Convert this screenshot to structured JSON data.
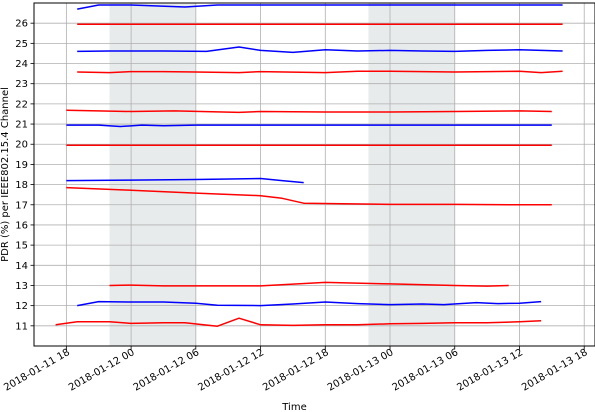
{
  "chart_data": {
    "type": "line",
    "xlabel": "Time",
    "ylabel": "PDR (%) per IEEE802.15.4 Channel",
    "x_unit": "datetime",
    "xlim": [
      "2018-01-11 15:00",
      "2018-01-13 19:00"
    ],
    "ylim": [
      10,
      27
    ],
    "grid": true,
    "x_ticks": [
      "2018-01-11 18",
      "2018-01-12 00",
      "2018-01-12 06",
      "2018-01-12 12",
      "2018-01-12 18",
      "2018-01-13 00",
      "2018-01-13 06",
      "2018-01-13 12",
      "2018-01-13 18"
    ],
    "x_tick_labels": [
      "2018-01-11 18",
      "2018-01-12 00",
      "2018-01-12 06",
      "2018-01-12 12",
      "2018-01-12 18",
      "2018-01-13 00",
      "2018-01-13 06",
      "2018-01-13 12",
      "2018-01-13 18"
    ],
    "y_ticks": [
      11,
      12,
      13,
      14,
      15,
      16,
      17,
      18,
      19,
      20,
      21,
      22,
      23,
      24,
      25,
      26
    ],
    "shaded_spans": [
      {
        "start": "2018-01-11 22:00",
        "end": "2018-01-12 06:00",
        "color": "#e8ebec"
      },
      {
        "start": "2018-01-12 22:00",
        "end": "2018-01-13 06:00",
        "color": "#e8ebec"
      }
    ],
    "series": [
      {
        "color": "#0000ff",
        "points": [
          [
            "2018-01-11 19:00",
            26.7
          ],
          [
            "2018-01-11 21:00",
            26.9
          ],
          [
            "2018-01-12 00:00",
            26.9
          ],
          [
            "2018-01-12 05:00",
            26.8
          ],
          [
            "2018-01-12 08:00",
            26.9
          ],
          [
            "2018-01-12 12:00",
            26.9
          ],
          [
            "2018-01-12 18:00",
            26.9
          ],
          [
            "2018-01-13 00:00",
            26.9
          ],
          [
            "2018-01-13 06:00",
            26.9
          ],
          [
            "2018-01-13 12:00",
            26.9
          ],
          [
            "2018-01-13 16:00",
            26.9
          ]
        ]
      },
      {
        "color": "#ff0000",
        "points": [
          [
            "2018-01-11 19:00",
            25.95
          ],
          [
            "2018-01-12 00:00",
            25.95
          ],
          [
            "2018-01-12 06:00",
            25.95
          ],
          [
            "2018-01-12 12:00",
            25.95
          ],
          [
            "2018-01-12 18:00",
            25.95
          ],
          [
            "2018-01-13 00:00",
            25.95
          ],
          [
            "2018-01-13 06:00",
            25.95
          ],
          [
            "2018-01-13 12:00",
            25.95
          ],
          [
            "2018-01-13 16:00",
            25.95
          ]
        ]
      },
      {
        "color": "#0000ff",
        "points": [
          [
            "2018-01-11 19:00",
            24.6
          ],
          [
            "2018-01-11 22:00",
            24.62
          ],
          [
            "2018-01-12 00:00",
            24.62
          ],
          [
            "2018-01-12 03:00",
            24.62
          ],
          [
            "2018-01-12 07:00",
            24.6
          ],
          [
            "2018-01-12 10:00",
            24.82
          ],
          [
            "2018-01-12 12:00",
            24.65
          ],
          [
            "2018-01-12 15:00",
            24.55
          ],
          [
            "2018-01-12 18:00",
            24.68
          ],
          [
            "2018-01-12 21:00",
            24.62
          ],
          [
            "2018-01-13 00:00",
            24.65
          ],
          [
            "2018-01-13 03:00",
            24.62
          ],
          [
            "2018-01-13 06:00",
            24.6
          ],
          [
            "2018-01-13 09:00",
            24.65
          ],
          [
            "2018-01-13 12:00",
            24.68
          ],
          [
            "2018-01-13 16:00",
            24.62
          ]
        ]
      },
      {
        "color": "#ff0000",
        "points": [
          [
            "2018-01-11 19:00",
            23.58
          ],
          [
            "2018-01-11 22:00",
            23.55
          ],
          [
            "2018-01-12 00:00",
            23.6
          ],
          [
            "2018-01-12 03:00",
            23.6
          ],
          [
            "2018-01-12 06:00",
            23.58
          ],
          [
            "2018-01-12 10:00",
            23.55
          ],
          [
            "2018-01-12 12:00",
            23.6
          ],
          [
            "2018-01-12 18:00",
            23.55
          ],
          [
            "2018-01-12 21:00",
            23.62
          ],
          [
            "2018-01-13 00:00",
            23.62
          ],
          [
            "2018-01-13 06:00",
            23.58
          ],
          [
            "2018-01-13 12:00",
            23.62
          ],
          [
            "2018-01-13 14:00",
            23.55
          ],
          [
            "2018-01-13 16:00",
            23.62
          ]
        ]
      },
      {
        "color": "#ff0000",
        "points": [
          [
            "2018-01-11 18:00",
            21.68
          ],
          [
            "2018-01-12 00:00",
            21.62
          ],
          [
            "2018-01-12 04:00",
            21.65
          ],
          [
            "2018-01-12 10:00",
            21.58
          ],
          [
            "2018-01-12 12:00",
            21.62
          ],
          [
            "2018-01-12 18:00",
            21.6
          ],
          [
            "2018-01-13 00:00",
            21.6
          ],
          [
            "2018-01-13 06:00",
            21.62
          ],
          [
            "2018-01-13 12:00",
            21.65
          ],
          [
            "2018-01-13 15:00",
            21.62
          ]
        ]
      },
      {
        "color": "#0000ff",
        "points": [
          [
            "2018-01-11 18:00",
            20.95
          ],
          [
            "2018-01-11 21:00",
            20.95
          ],
          [
            "2018-01-11 23:00",
            20.88
          ],
          [
            "2018-01-12 01:00",
            20.95
          ],
          [
            "2018-01-12 03:00",
            20.92
          ],
          [
            "2018-01-12 06:00",
            20.95
          ],
          [
            "2018-01-12 12:00",
            20.95
          ],
          [
            "2018-01-12 18:00",
            20.95
          ],
          [
            "2018-01-13 00:00",
            20.95
          ],
          [
            "2018-01-13 06:00",
            20.95
          ],
          [
            "2018-01-13 12:00",
            20.95
          ],
          [
            "2018-01-13 15:00",
            20.95
          ]
        ]
      },
      {
        "color": "#ff0000",
        "points": [
          [
            "2018-01-11 18:00",
            19.95
          ],
          [
            "2018-01-12 06:00",
            19.95
          ],
          [
            "2018-01-12 12:00",
            19.95
          ],
          [
            "2018-01-12 18:00",
            19.95
          ],
          [
            "2018-01-13 00:00",
            19.95
          ],
          [
            "2018-01-13 06:00",
            19.95
          ],
          [
            "2018-01-13 15:00",
            19.95
          ]
        ]
      },
      {
        "color": "#0000ff",
        "points": [
          [
            "2018-01-11 18:00",
            18.2
          ],
          [
            "2018-01-12 00:00",
            18.22
          ],
          [
            "2018-01-12 06:00",
            18.25
          ],
          [
            "2018-01-12 12:00",
            18.3
          ],
          [
            "2018-01-12 14:00",
            18.2
          ],
          [
            "2018-01-12 16:00",
            18.1
          ]
        ]
      },
      {
        "color": "#ff0000",
        "points": [
          [
            "2018-01-11 18:00",
            17.85
          ],
          [
            "2018-01-12 00:00",
            17.72
          ],
          [
            "2018-01-12 06:00",
            17.58
          ],
          [
            "2018-01-12 12:00",
            17.45
          ],
          [
            "2018-01-12 14:00",
            17.32
          ],
          [
            "2018-01-12 16:00",
            17.08
          ],
          [
            "2018-01-13 00:00",
            17.02
          ],
          [
            "2018-01-13 06:00",
            17.02
          ],
          [
            "2018-01-13 12:00",
            17.0
          ],
          [
            "2018-01-13 15:00",
            17.0
          ]
        ]
      },
      {
        "color": "#ff0000",
        "points": [
          [
            "2018-01-11 22:00",
            13.0
          ],
          [
            "2018-01-12 00:00",
            13.02
          ],
          [
            "2018-01-12 03:00",
            12.98
          ],
          [
            "2018-01-12 06:00",
            12.98
          ],
          [
            "2018-01-12 12:00",
            12.98
          ],
          [
            "2018-01-12 18:00",
            13.15
          ],
          [
            "2018-01-13 00:00",
            13.08
          ],
          [
            "2018-01-13 06:00",
            13.0
          ],
          [
            "2018-01-13 09:00",
            12.97
          ],
          [
            "2018-01-13 11:00",
            13.0
          ]
        ]
      },
      {
        "color": "#0000ff",
        "points": [
          [
            "2018-01-11 19:00",
            12.0
          ],
          [
            "2018-01-11 21:00",
            12.2
          ],
          [
            "2018-01-12 00:00",
            12.18
          ],
          [
            "2018-01-12 03:00",
            12.18
          ],
          [
            "2018-01-12 06:00",
            12.12
          ],
          [
            "2018-01-12 08:00",
            12.02
          ],
          [
            "2018-01-12 12:00",
            12.0
          ],
          [
            "2018-01-12 15:00",
            12.08
          ],
          [
            "2018-01-12 18:00",
            12.18
          ],
          [
            "2018-01-12 21:00",
            12.1
          ],
          [
            "2018-01-13 00:00",
            12.05
          ],
          [
            "2018-01-13 03:00",
            12.08
          ],
          [
            "2018-01-13 05:00",
            12.05
          ],
          [
            "2018-01-13 08:00",
            12.15
          ],
          [
            "2018-01-13 10:00",
            12.1
          ],
          [
            "2018-01-13 12:00",
            12.12
          ],
          [
            "2018-01-13 14:00",
            12.2
          ]
        ]
      },
      {
        "color": "#ff0000",
        "points": [
          [
            "2018-01-11 17:00",
            11.05
          ],
          [
            "2018-01-11 19:00",
            11.2
          ],
          [
            "2018-01-11 22:00",
            11.2
          ],
          [
            "2018-01-12 00:00",
            11.12
          ],
          [
            "2018-01-12 03:00",
            11.15
          ],
          [
            "2018-01-12 05:00",
            11.15
          ],
          [
            "2018-01-12 08:00",
            10.98
          ],
          [
            "2018-01-12 10:00",
            11.38
          ],
          [
            "2018-01-12 12:00",
            11.05
          ],
          [
            "2018-01-12 15:00",
            11.02
          ],
          [
            "2018-01-12 18:00",
            11.05
          ],
          [
            "2018-01-12 21:00",
            11.05
          ],
          [
            "2018-01-13 00:00",
            11.1
          ],
          [
            "2018-01-13 03:00",
            11.12
          ],
          [
            "2018-01-13 06:00",
            11.15
          ],
          [
            "2018-01-13 09:00",
            11.15
          ],
          [
            "2018-01-13 12:00",
            11.2
          ],
          [
            "2018-01-13 14:00",
            11.25
          ]
        ]
      }
    ]
  }
}
